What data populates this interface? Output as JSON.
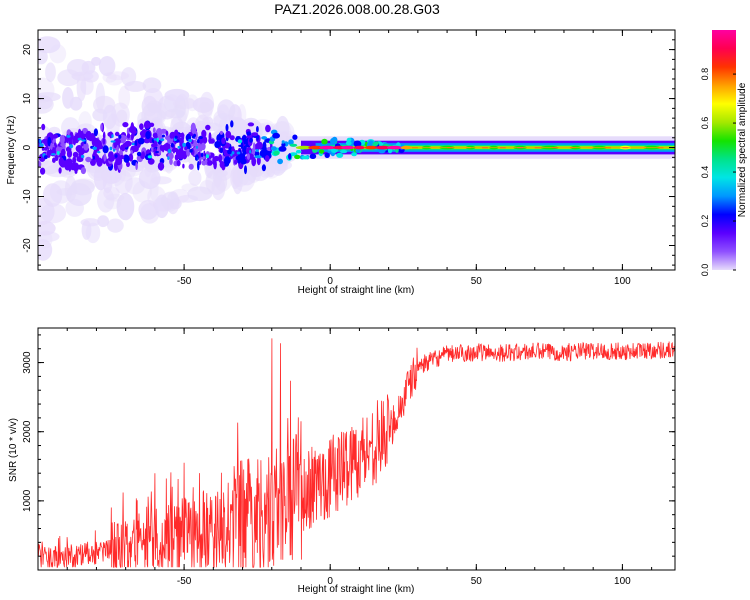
{
  "figure": {
    "title": "PAZ1.2026.008.00.28.G03"
  },
  "chart_data": [
    {
      "type": "heatmap",
      "title": "PAZ1.2026.008.00.28.G03",
      "xlabel": "Height of straight line (km)",
      "ylabel": "Frequency (Hz)",
      "xlim": [
        -100,
        118
      ],
      "ylim": [
        -25,
        24
      ],
      "xticks": [
        -50,
        0,
        50,
        100
      ],
      "xtick_labels": [
        "-50",
        "0",
        "50",
        "100"
      ],
      "yticks": [
        -20,
        -10,
        0,
        10,
        20
      ],
      "ytick_labels": [
        "-20",
        "-10",
        "0",
        "10",
        "20"
      ],
      "colorbar": {
        "label": "Normalized spectral amplitude",
        "range": [
          0,
          0.98
        ],
        "ticks": [
          0.0,
          0.2,
          0.4,
          0.6,
          0.8
        ],
        "tick_labels": [
          "0.0",
          "0.2",
          "0.4",
          "0.6",
          "0.8"
        ],
        "colors": [
          "#e6dcfb",
          "#8f50ff",
          "#5a00ff",
          "#0000ff",
          "#0097ff",
          "#00e5e5",
          "#00e38a",
          "#14e300",
          "#a5e800",
          "#ffff00",
          "#ffa000",
          "#ff3300",
          "#ff0050",
          "#ff00a0"
        ]
      },
      "description_of_data": {
        "center_frequency_hz": 0,
        "scattered_region_km": [
          -100,
          -25
        ],
        "transition_region_km": [
          -25,
          25
        ],
        "stable_band_region_km": [
          25,
          118
        ],
        "scattered_band_halfwidth_hz": 4,
        "stable_band_halfwidth_hz": 1.2,
        "peak_amplitude_in_transition": 0.98
      }
    },
    {
      "type": "line",
      "xlabel": "Height of straight line (km)",
      "ylabel": "SNR (10 * v/v)",
      "xlim": [
        -100,
        118
      ],
      "ylim": [
        0,
        3500
      ],
      "xticks": [
        -50,
        0,
        50,
        100
      ],
      "xtick_labels": [
        "-50",
        "0",
        "50",
        "100"
      ],
      "yticks": [
        1000,
        2000,
        3000
      ],
      "ytick_labels": [
        "1000",
        "2000",
        "3000"
      ],
      "series": [
        {
          "name": "SNR",
          "color": "#ff2a2a",
          "x": [
            -100,
            -90,
            -80,
            -70,
            -60,
            -50,
            -40,
            -30,
            -20,
            -10,
            0,
            10,
            20,
            25,
            30,
            40,
            50,
            60,
            70,
            80,
            90,
            100,
            110,
            118
          ],
          "values": [
            150,
            180,
            250,
            300,
            420,
            480,
            560,
            700,
            850,
            1100,
            1350,
            1650,
            2000,
            2450,
            2950,
            3120,
            3150,
            3140,
            3160,
            3150,
            3170,
            3160,
            3180,
            3190
          ],
          "spike_peaks": [
            {
              "x": -20,
              "value": 3350
            },
            {
              "x": -17,
              "value": 3280
            },
            {
              "x": -10,
              "value": 2150
            },
            {
              "x": -50,
              "value": 1550
            },
            {
              "x": -60,
              "value": 1400
            }
          ]
        }
      ]
    }
  ]
}
